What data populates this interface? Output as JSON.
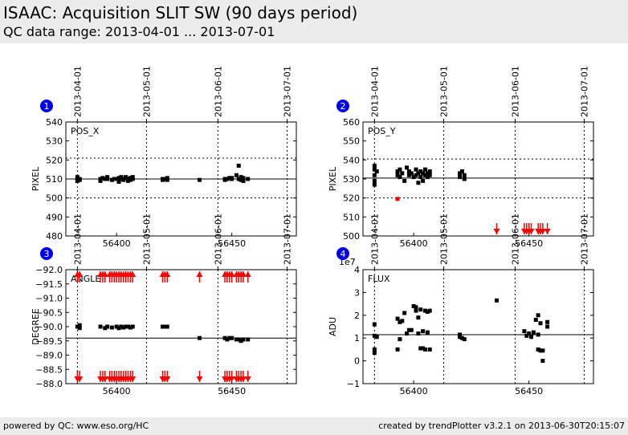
{
  "header": {
    "title": "ISAAC: Acquisition SLIT SW (90 days period)",
    "subtitle": "QC data range: 2013-04-01 ... 2013-07-01"
  },
  "footer": {
    "left": "powered by QC: www.eso.org/HC",
    "right": "created by trendPlotter v3.2.1 on 2013-06-30T20:15:07"
  },
  "colors": {
    "points": "#000000",
    "outliers": "#ff0000",
    "badge": "#0000ee",
    "panel_bg": "#ffffff",
    "header_bg": "#ececec"
  },
  "chart_data": [
    {
      "type": "scatter",
      "panel_number": "1",
      "panel_label": "POS_X",
      "ylabel": "PIXEL",
      "xlim": [
        56378,
        56478
      ],
      "ylim": [
        480,
        540
      ],
      "yticks": [
        480,
        490,
        500,
        510,
        520,
        530,
        540
      ],
      "xticks": [
        56400,
        56450
      ],
      "top_date_ticks": [
        {
          "mjd": 56383,
          "label": "2013-04-01"
        },
        {
          "mjd": 56413,
          "label": "2013-05-01"
        },
        {
          "mjd": 56444,
          "label": "2013-06-01"
        },
        {
          "mjd": 56474,
          "label": "2013-07-01"
        }
      ],
      "reference_line": 510,
      "limit_lines": [
        500,
        521
      ],
      "points": [
        [
          56383,
          510
        ],
        [
          56383,
          511
        ],
        [
          56383,
          509
        ],
        [
          56383.5,
          510
        ],
        [
          56384,
          509.5
        ],
        [
          56384,
          510
        ],
        [
          56393,
          510
        ],
        [
          56393,
          509
        ],
        [
          56394,
          510.5
        ],
        [
          56395,
          510
        ],
        [
          56396,
          510
        ],
        [
          56396,
          511
        ],
        [
          56398,
          509.5
        ],
        [
          56399,
          510
        ],
        [
          56400,
          510
        ],
        [
          56401,
          508.5
        ],
        [
          56401,
          510.5
        ],
        [
          56402,
          510
        ],
        [
          56402,
          511
        ],
        [
          56403,
          509.5
        ],
        [
          56403,
          510
        ],
        [
          56404,
          510.5
        ],
        [
          56404,
          511
        ],
        [
          56405,
          510
        ],
        [
          56405,
          509
        ],
        [
          56406,
          510.5
        ],
        [
          56406,
          509.5
        ],
        [
          56407,
          510
        ],
        [
          56407,
          511
        ],
        [
          56420,
          510
        ],
        [
          56420,
          509.5
        ],
        [
          56421,
          510
        ],
        [
          56422,
          509.5
        ],
        [
          56422,
          510.5
        ],
        [
          56436,
          509.5
        ],
        [
          56447,
          510
        ],
        [
          56447,
          509.5
        ],
        [
          56448,
          510
        ],
        [
          56449,
          510.5
        ],
        [
          56450,
          510
        ],
        [
          56450,
          510.5
        ],
        [
          56452,
          512
        ],
        [
          56453,
          517
        ],
        [
          56453,
          510
        ],
        [
          56454,
          511
        ],
        [
          56454,
          509.5
        ],
        [
          56455,
          510.5
        ],
        [
          56455,
          509
        ],
        [
          56457,
          510
        ]
      ],
      "outliers": []
    },
    {
      "type": "scatter",
      "panel_number": "2",
      "panel_label": "POS_Y",
      "ylabel": "PIXEL",
      "xlim": [
        56378,
        56478
      ],
      "ylim": [
        500,
        560
      ],
      "yticks": [
        500,
        510,
        520,
        530,
        540,
        550,
        560
      ],
      "xticks": [
        56400,
        56450
      ],
      "top_date_ticks": [
        {
          "mjd": 56383,
          "label": "2013-04-01"
        },
        {
          "mjd": 56413,
          "label": "2013-05-01"
        },
        {
          "mjd": 56444,
          "label": "2013-06-01"
        },
        {
          "mjd": 56474,
          "label": "2013-07-01"
        }
      ],
      "reference_line": 530.5,
      "limit_lines": [
        520,
        540.5
      ],
      "points": [
        [
          56383,
          537
        ],
        [
          56383,
          535
        ],
        [
          56383,
          532
        ],
        [
          56383,
          529
        ],
        [
          56383,
          527
        ],
        [
          56384,
          534
        ],
        [
          56393,
          532
        ],
        [
          56393,
          534
        ],
        [
          56394,
          531
        ],
        [
          56394,
          535
        ],
        [
          56395,
          533
        ],
        [
          56396,
          529
        ],
        [
          56397,
          536
        ],
        [
          56398,
          532
        ],
        [
          56398,
          534
        ],
        [
          56399,
          533
        ],
        [
          56400,
          531
        ],
        [
          56401,
          535
        ],
        [
          56401,
          532
        ],
        [
          56402,
          528
        ],
        [
          56402,
          533
        ],
        [
          56403,
          534
        ],
        [
          56403,
          531
        ],
        [
          56404,
          529
        ],
        [
          56404,
          533
        ],
        [
          56405,
          535
        ],
        [
          56405,
          532
        ],
        [
          56406,
          533
        ],
        [
          56406,
          531
        ],
        [
          56407,
          534
        ],
        [
          56407,
          532
        ],
        [
          56420,
          533
        ],
        [
          56420,
          531
        ],
        [
          56421,
          534
        ],
        [
          56422,
          532
        ],
        [
          56422,
          530
        ]
      ],
      "outliers": [
        {
          "x": 56393,
          "y": 519.5,
          "kind": "point"
        },
        {
          "x": 56436,
          "dir": "down"
        },
        {
          "x": 56448,
          "dir": "down"
        },
        {
          "x": 56449,
          "dir": "down"
        },
        {
          "x": 56450,
          "dir": "down"
        },
        {
          "x": 56451,
          "dir": "down"
        },
        {
          "x": 56454,
          "dir": "down"
        },
        {
          "x": 56455,
          "dir": "down"
        },
        {
          "x": 56456,
          "dir": "down"
        },
        {
          "x": 56458,
          "dir": "down"
        }
      ]
    },
    {
      "type": "scatter",
      "panel_number": "3",
      "panel_label": "ANGLE",
      "ylabel": "DEGREE",
      "xlim": [
        56378,
        56478
      ],
      "ylim": [
        -92.0,
        -88.0
      ],
      "inverted_y": true,
      "yticks": [
        -92.0,
        -91.5,
        -91.0,
        -90.5,
        -90.0,
        -89.5,
        -89.0,
        -88.5,
        -88.0
      ],
      "xticks": [
        56400,
        56450
      ],
      "top_date_ticks": [
        {
          "mjd": 56383,
          "label": "2013-04-01"
        },
        {
          "mjd": 56413,
          "label": "2013-05-01"
        },
        {
          "mjd": 56444,
          "label": "2013-06-01"
        },
        {
          "mjd": 56474,
          "label": "2013-07-01"
        }
      ],
      "reference_line": -89.6,
      "limit_lines": [],
      "points": [
        [
          56383,
          -90.0
        ],
        [
          56384,
          -89.95
        ],
        [
          56384,
          -90.05
        ],
        [
          56393,
          -90.0
        ],
        [
          56395,
          -89.95
        ],
        [
          56396,
          -90.0
        ],
        [
          56398,
          -89.97
        ],
        [
          56400,
          -90.0
        ],
        [
          56401,
          -89.95
        ],
        [
          56402,
          -90.0
        ],
        [
          56403,
          -89.97
        ],
        [
          56404,
          -90.0
        ],
        [
          56405,
          -90.0
        ],
        [
          56406,
          -89.97
        ],
        [
          56407,
          -90.0
        ],
        [
          56420,
          -90.0
        ],
        [
          56421,
          -90.0
        ],
        [
          56422,
          -90.0
        ],
        [
          56436,
          -89.6
        ],
        [
          56447,
          -89.6
        ],
        [
          56448,
          -89.55
        ],
        [
          56449,
          -89.6
        ],
        [
          56450,
          -89.6
        ],
        [
          56452,
          -89.55
        ],
        [
          56453,
          -89.55
        ],
        [
          56454,
          -89.5
        ],
        [
          56455,
          -89.55
        ],
        [
          56457,
          -89.55
        ]
      ],
      "outliers_top": [
        56383,
        56384,
        56393,
        56394,
        56395,
        56397,
        56398,
        56399,
        56400,
        56401,
        56402,
        56403,
        56404,
        56405,
        56406,
        56407,
        56420,
        56421,
        56422,
        56436,
        56447,
        56448,
        56449,
        56450,
        56452,
        56453,
        56454,
        56455,
        56457
      ],
      "outliers_bottom": [
        56383,
        56384,
        56393,
        56394,
        56395,
        56397,
        56398,
        56399,
        56400,
        56401,
        56402,
        56403,
        56404,
        56405,
        56406,
        56407,
        56420,
        56421,
        56422,
        56436,
        56447,
        56448,
        56449,
        56450,
        56452,
        56453,
        56454,
        56455,
        56457
      ]
    },
    {
      "type": "scatter",
      "panel_number": "4",
      "panel_label": "FLUX",
      "ylabel": "ADU",
      "exponent_label": "1e7",
      "xlim": [
        56378,
        56478
      ],
      "ylim": [
        -1,
        4
      ],
      "yticks": [
        -1,
        0,
        1,
        2,
        3,
        4
      ],
      "xticks": [
        56400,
        56450
      ],
      "top_date_ticks": [
        {
          "mjd": 56383,
          "label": "2013-04-01"
        },
        {
          "mjd": 56413,
          "label": "2013-05-01"
        },
        {
          "mjd": 56444,
          "label": "2013-06-01"
        },
        {
          "mjd": 56474,
          "label": "2013-07-01"
        }
      ],
      "reference_line": 1.15,
      "limit_lines": [],
      "points": [
        [
          56383,
          1.6
        ],
        [
          56383,
          1.1
        ],
        [
          56383,
          0.5
        ],
        [
          56383,
          0.35
        ],
        [
          56384,
          1.05
        ],
        [
          56393,
          1.85
        ],
        [
          56393,
          0.5
        ],
        [
          56394,
          1.7
        ],
        [
          56394,
          0.95
        ],
        [
          56395,
          1.75
        ],
        [
          56396,
          2.1
        ],
        [
          56397,
          1.2
        ],
        [
          56398,
          1.35
        ],
        [
          56399,
          1.35
        ],
        [
          56400,
          2.4
        ],
        [
          56401,
          2.2
        ],
        [
          56401,
          2.35
        ],
        [
          56402,
          1.2
        ],
        [
          56402,
          1.9
        ],
        [
          56403,
          0.55
        ],
        [
          56403,
          2.25
        ],
        [
          56404,
          0.55
        ],
        [
          56404,
          1.3
        ],
        [
          56405,
          2.2
        ],
        [
          56405,
          0.5
        ],
        [
          56406,
          2.15
        ],
        [
          56406,
          1.25
        ],
        [
          56407,
          2.2
        ],
        [
          56407,
          0.5
        ],
        [
          56420,
          1.05
        ],
        [
          56420,
          1.15
        ],
        [
          56421,
          1.0
        ],
        [
          56422,
          0.95
        ],
        [
          56436,
          2.65
        ],
        [
          56448,
          1.3
        ],
        [
          56449,
          1.1
        ],
        [
          56450,
          1.2
        ],
        [
          56451,
          1.05
        ],
        [
          56452,
          1.25
        ],
        [
          56453,
          1.8
        ],
        [
          56454,
          1.15
        ],
        [
          56454,
          2.0
        ],
        [
          56454,
          0.5
        ],
        [
          56455,
          1.65
        ],
        [
          56455,
          0.45
        ],
        [
          56456,
          0.45
        ],
        [
          56456,
          0.0
        ],
        [
          56458,
          1.7
        ],
        [
          56458,
          1.5
        ]
      ],
      "outliers": []
    }
  ]
}
